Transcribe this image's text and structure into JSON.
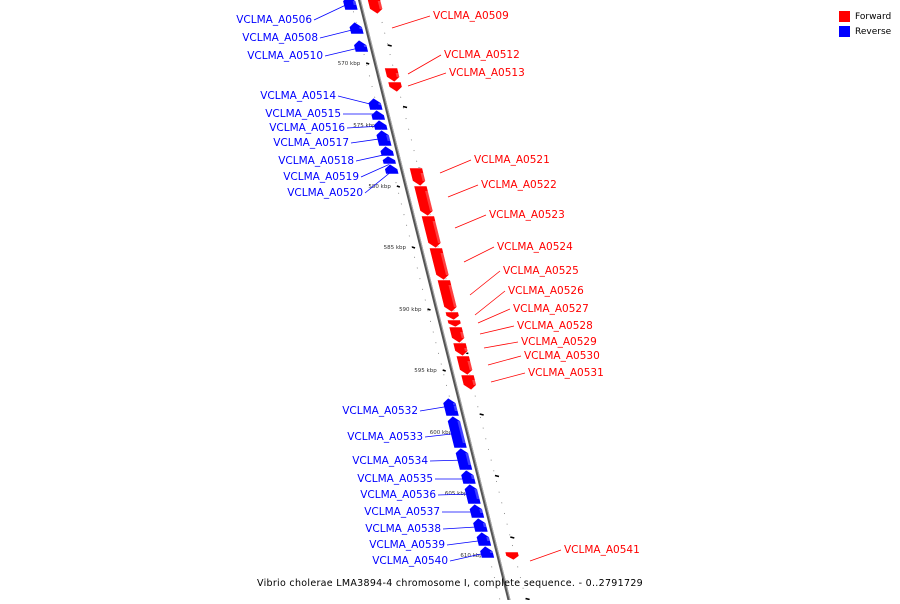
{
  "legend": {
    "forward_label": "Forward",
    "reverse_label": "Reverse",
    "forward_color": "#ff0000",
    "reverse_color": "#0000ff"
  },
  "caption": "Vibrio cholerae LMA3894-4 chromosome I, complete sequence. - 0..2791729",
  "ruler": {
    "ticks": [
      "570 kbp",
      "575 kbp",
      "580 kbp",
      "585 kbp",
      "590 kbp",
      "595 kbp",
      "600 kbp",
      "605 kbp",
      "610 kbp"
    ]
  },
  "genes": [
    {
      "label": "VCLMA_A0506",
      "strand": "reverse"
    },
    {
      "label": "VCLMA_A0508",
      "strand": "reverse"
    },
    {
      "label": "VCLMA_A0509",
      "strand": "forward"
    },
    {
      "label": "VCLMA_A0510",
      "strand": "reverse"
    },
    {
      "label": "VCLMA_A0512",
      "strand": "forward"
    },
    {
      "label": "VCLMA_A0513",
      "strand": "forward"
    },
    {
      "label": "VCLMA_A0514",
      "strand": "reverse"
    },
    {
      "label": "VCLMA_A0515",
      "strand": "reverse"
    },
    {
      "label": "VCLMA_A0516",
      "strand": "reverse"
    },
    {
      "label": "VCLMA_A0517",
      "strand": "reverse"
    },
    {
      "label": "VCLMA_A0518",
      "strand": "reverse"
    },
    {
      "label": "VCLMA_A0519",
      "strand": "reverse"
    },
    {
      "label": "VCLMA_A0520",
      "strand": "reverse"
    },
    {
      "label": "VCLMA_A0521",
      "strand": "forward"
    },
    {
      "label": "VCLMA_A0522",
      "strand": "forward"
    },
    {
      "label": "VCLMA_A0523",
      "strand": "forward"
    },
    {
      "label": "VCLMA_A0524",
      "strand": "forward"
    },
    {
      "label": "VCLMA_A0525",
      "strand": "forward"
    },
    {
      "label": "VCLMA_A0526",
      "strand": "forward"
    },
    {
      "label": "VCLMA_A0527",
      "strand": "forward"
    },
    {
      "label": "VCLMA_A0528",
      "strand": "forward"
    },
    {
      "label": "VCLMA_A0529",
      "strand": "forward"
    },
    {
      "label": "VCLMA_A0530",
      "strand": "forward"
    },
    {
      "label": "VCLMA_A0531",
      "strand": "forward"
    },
    {
      "label": "VCLMA_A0532",
      "strand": "reverse"
    },
    {
      "label": "VCLMA_A0533",
      "strand": "reverse"
    },
    {
      "label": "VCLMA_A0534",
      "strand": "reverse"
    },
    {
      "label": "VCLMA_A0535",
      "strand": "reverse"
    },
    {
      "label": "VCLMA_A0536",
      "strand": "reverse"
    },
    {
      "label": "VCLMA_A0537",
      "strand": "reverse"
    },
    {
      "label": "VCLMA_A0538",
      "strand": "reverse"
    },
    {
      "label": "VCLMA_A0539",
      "strand": "reverse"
    },
    {
      "label": "VCLMA_A0540",
      "strand": "reverse"
    },
    {
      "label": "VCLMA_A0541",
      "strand": "forward"
    }
  ]
}
